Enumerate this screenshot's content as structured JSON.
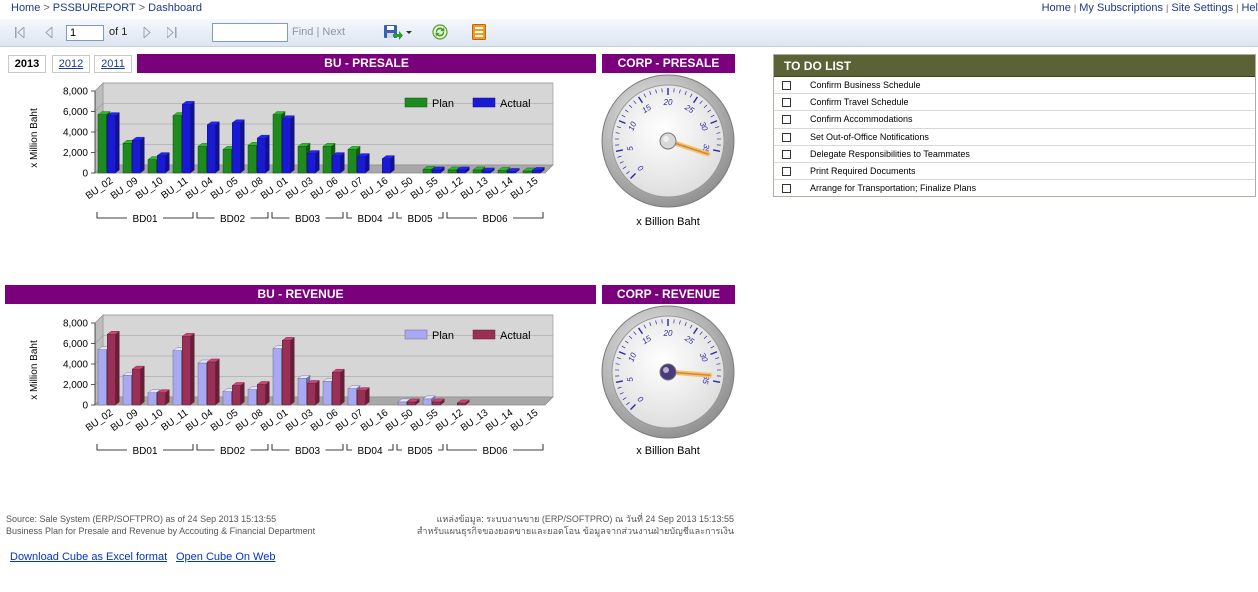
{
  "breadcrumb": {
    "home": "Home",
    "report": "PSSBUREPORT",
    "page": "Dashboard",
    "sep": ">"
  },
  "toplinks": {
    "home": "Home",
    "subscriptions": "My Subscriptions",
    "settings": "Site Settings",
    "help": "Hel",
    "sep": "|"
  },
  "toolbar": {
    "first_icon": "first-page-icon",
    "prev_icon": "prev-page-icon",
    "next_icon": "next-page-icon",
    "last_icon": "last-page-icon",
    "page_value": "1",
    "of_text": "of 1",
    "find": "Find",
    "sep": "|",
    "next": "Next",
    "export_icon": "save-export-icon",
    "refresh_icon": "refresh-icon",
    "print_icon": "print-layout-icon"
  },
  "years": {
    "y2013": "2013",
    "y2012": "2012",
    "y2011": "2011"
  },
  "headers": {
    "bu_presale": "BU - PRESALE",
    "corp_presale": "CORP - PRESALE",
    "bu_revenue": "BU - REVENUE",
    "corp_revenue": "CORP - REVENUE"
  },
  "gauge_caption": "x Billion Baht",
  "todo": {
    "title": "TO DO LIST",
    "items": [
      "Confirm Business Schedule",
      "Confirm Travel Schedule",
      "Confirm Accommodations",
      "Set Out-of-Office Notifications",
      "Delegate Responsibilities to Teammates",
      "Print Required Documents",
      "Arrange for Transportation; Finalize Plans"
    ]
  },
  "footer": {
    "left1": "Source: Sale System (ERP/SOFTPRO) as of 24 Sep 2013 15:13:55",
    "left2": "Business Plan for Presale and Revenue by Accouting & Financial Department",
    "right1": "แหล่งข้อมูล: ระบบงานขาย (ERP/SOFTPRO) ณ วันที่ 24 Sep 2013 15:13:55",
    "right2": "สำหรับแผนธุรกิจของยอดขายและยอดโอน ข้อมูลจากส่วนงานฝ่ายบัญชีและการเงิน"
  },
  "links": {
    "download": "Download Cube as Excel format",
    "open": "Open Cube On Web"
  },
  "colors": {
    "header_purple": "#7b007b",
    "todo_header": "#5b6336",
    "presale_plan": "#1f8a1f",
    "presale_actual": "#1a1ad6",
    "revenue_plan": "#a9a9f2",
    "revenue_actual": "#9b3057"
  },
  "chart_data": [
    {
      "type": "bar",
      "title": "BU - PRESALE",
      "ylabel": "x Million Baht",
      "ylim": [
        0,
        8000
      ],
      "yticks": [
        "0",
        "2,000",
        "4,000",
        "6,000",
        "8,000"
      ],
      "categories": [
        "BU_02",
        "BU_09",
        "BU_10",
        "BU_11",
        "BU_04",
        "BU_05",
        "BU_08",
        "BU_01",
        "BU_03",
        "BU_06",
        "BU_07",
        "BU_16",
        "BU_50",
        "BU_55",
        "BU_12",
        "BU_13",
        "BU_14",
        "BU_15"
      ],
      "groups": [
        {
          "name": "BD01",
          "count": 4
        },
        {
          "name": "BD02",
          "count": 3
        },
        {
          "name": "BD03",
          "count": 3
        },
        {
          "name": "BD04",
          "count": 2
        },
        {
          "name": "BD05",
          "count": 2
        },
        {
          "name": "BD06",
          "count": 4
        }
      ],
      "series": [
        {
          "name": "Plan",
          "values": [
            5700,
            2900,
            1300,
            5600,
            2600,
            2300,
            2700,
            5700,
            2600,
            2600,
            2300,
            0,
            0,
            350,
            300,
            300,
            250,
            200
          ]
        },
        {
          "name": "Actual",
          "values": [
            5600,
            3200,
            1700,
            6700,
            4700,
            4900,
            3400,
            5300,
            1900,
            1700,
            1600,
            1400,
            0,
            300,
            300,
            200,
            150,
            250
          ]
        }
      ],
      "legend": "top-right"
    },
    {
      "type": "bar",
      "title": "BU - REVENUE",
      "ylabel": "x Million Baht",
      "ylim": [
        0,
        8000
      ],
      "yticks": [
        "0",
        "2,000",
        "4,000",
        "6,000",
        "8,000"
      ],
      "categories": [
        "BU_02",
        "BU_09",
        "BU_10",
        "BU_11",
        "BU_04",
        "BU_05",
        "BU_08",
        "BU_01",
        "BU_03",
        "BU_06",
        "BU_07",
        "BU_16",
        "BU_50",
        "BU_55",
        "BU_12",
        "BU_13",
        "BU_14",
        "BU_15"
      ],
      "groups": [
        {
          "name": "BD01",
          "count": 4
        },
        {
          "name": "BD02",
          "count": 3
        },
        {
          "name": "BD03",
          "count": 3
        },
        {
          "name": "BD04",
          "count": 2
        },
        {
          "name": "BD05",
          "count": 2
        },
        {
          "name": "BD06",
          "count": 4
        }
      ],
      "series": [
        {
          "name": "Plan",
          "values": [
            5400,
            2900,
            1200,
            5300,
            4100,
            1300,
            1500,
            5500,
            2600,
            2300,
            1600,
            0,
            300,
            600,
            0,
            0,
            0,
            0
          ]
        },
        {
          "name": "Actual",
          "values": [
            6900,
            3500,
            1200,
            6700,
            4200,
            1900,
            2000,
            6300,
            2100,
            3200,
            1400,
            0,
            300,
            300,
            200,
            0,
            0,
            0
          ]
        }
      ],
      "legend": "top-right"
    },
    {
      "type": "gauge",
      "title": "CORP - PRESALE",
      "caption": "x Billion Baht",
      "scale_labels": [
        "0",
        "5",
        "10",
        "15",
        "20",
        "25",
        "30",
        "35"
      ],
      "value": 36
    },
    {
      "type": "gauge",
      "title": "CORP - REVENUE",
      "caption": "x Billion Baht",
      "scale_labels": [
        "0",
        "5",
        "10",
        "15",
        "20",
        "25",
        "30",
        "35"
      ],
      "value": 34
    }
  ]
}
